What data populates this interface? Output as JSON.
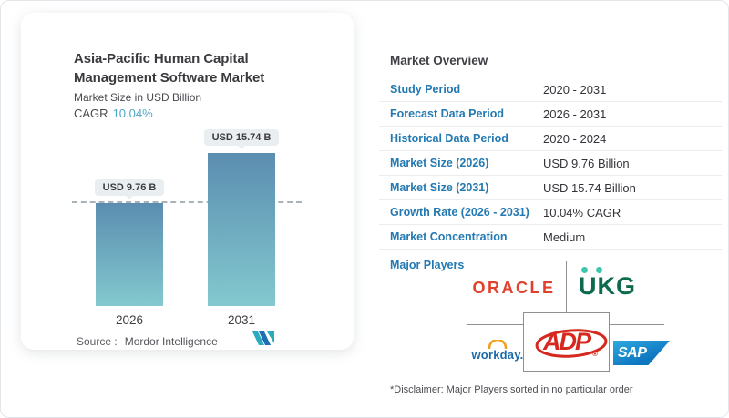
{
  "chart_card": {
    "title_line1": "Asia-Pacific Human Capital",
    "title_line2": "Management Software Market",
    "subtitle": "Market Size in USD Billion",
    "cagr_label": "CAGR",
    "cagr_value": "10.04%",
    "source_label": "Source :",
    "source_value": "Mordor Intelligence"
  },
  "chart_data": {
    "type": "bar",
    "title": "Asia-Pacific Human Capital Management Software Market",
    "ylabel": "Market Size in USD Billion",
    "categories": [
      "2026",
      "2031"
    ],
    "values": [
      9.76,
      15.74
    ],
    "value_labels": [
      "USD 9.76 B",
      "USD 15.74 B"
    ],
    "cagr_percent": 10.04,
    "reference_line_at": 9.76,
    "bar_color_top": "#5b8db0",
    "bar_color_bottom": "#83c9cf",
    "grid": false,
    "legend": false
  },
  "overview": {
    "title": "Market Overview",
    "rows": [
      {
        "label": "Study Period",
        "value": "2020 - 2031"
      },
      {
        "label": "Forecast Data Period",
        "value": "2026 - 2031"
      },
      {
        "label": "Historical Data Period",
        "value": "2020 - 2024"
      },
      {
        "label": "Market Size (2026)",
        "value": "USD 9.76 Billion"
      },
      {
        "label": "Market Size (2031)",
        "value": "USD 15.74 Billion"
      },
      {
        "label": "Growth Rate (2026 - 2031)",
        "value": "10.04% CAGR"
      },
      {
        "label": "Market Concentration",
        "value": "Medium"
      }
    ],
    "major_players_label": "Major Players",
    "players": {
      "oracle": "ORACLE",
      "ukg": "UKG",
      "workday": "workday.",
      "adp": "ADP",
      "adp_reg": "®",
      "sap": "SAP"
    },
    "disclaimer": "*Disclaimer: Major Players sorted in no particular order"
  },
  "colors": {
    "row_label_blue": "#2379b2",
    "cagr_teal": "#4fa6c5",
    "oracle_red": "#e0402c",
    "ukg_green": "#0e6a4e",
    "ukg_mint": "#3cc7ae",
    "workday_blue": "#1d6aa8",
    "workday_orange": "#f0a11c",
    "adp_red": "#d6281e",
    "sap_blue": "#0f76c0",
    "mordor_teal": "#2aa9bf",
    "mordor_blue": "#1d6fb5"
  }
}
